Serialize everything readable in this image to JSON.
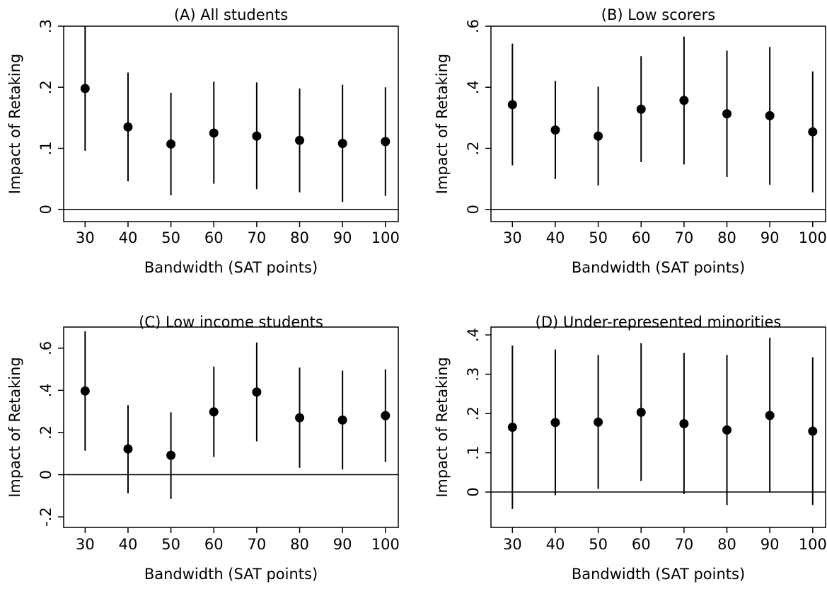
{
  "chart_data": [
    {
      "type": "scatter",
      "title": "(A) All students",
      "xlabel": "Bandwidth (SAT points)",
      "ylabel": "Impact of Retaking",
      "x": [
        30,
        40,
        50,
        60,
        70,
        80,
        90,
        100
      ],
      "xticks": [
        "30",
        "40",
        "50",
        "60",
        "70",
        "80",
        "90",
        "100"
      ],
      "yticks": [
        {
          "value": 0,
          "label": "0"
        },
        {
          "value": 0.1,
          "label": ".1"
        },
        {
          "value": 0.2,
          "label": ".2"
        },
        {
          "value": 0.3,
          "label": ".3"
        }
      ],
      "ylim": [
        -0.02,
        0.3
      ],
      "reference_line": 0,
      "estimates": [
        0.198,
        0.135,
        0.107,
        0.125,
        0.12,
        0.113,
        0.108,
        0.111
      ],
      "ci_low": [
        0.096,
        0.046,
        0.023,
        0.042,
        0.033,
        0.028,
        0.012,
        0.022
      ],
      "ci_high": [
        0.3,
        0.224,
        0.191,
        0.209,
        0.208,
        0.198,
        0.204,
        0.2
      ]
    },
    {
      "type": "scatter",
      "title": "(B) Low scorers",
      "xlabel": "Bandwidth (SAT points)",
      "ylabel": "Impact of Retaking",
      "x": [
        30,
        40,
        50,
        60,
        70,
        80,
        90,
        100
      ],
      "xticks": [
        "30",
        "40",
        "50",
        "60",
        "70",
        "80",
        "90",
        "100"
      ],
      "yticks": [
        {
          "value": 0,
          "label": "0"
        },
        {
          "value": 0.2,
          "label": ".2"
        },
        {
          "value": 0.4,
          "label": ".4"
        },
        {
          "value": 0.6,
          "label": ".6"
        }
      ],
      "ylim": [
        -0.04,
        0.6
      ],
      "reference_line": 0,
      "estimates": [
        0.343,
        0.26,
        0.24,
        0.328,
        0.357,
        0.313,
        0.307,
        0.254
      ],
      "ci_low": [
        0.144,
        0.099,
        0.078,
        0.155,
        0.147,
        0.106,
        0.081,
        0.056
      ],
      "ci_high": [
        0.543,
        0.421,
        0.402,
        0.502,
        0.566,
        0.52,
        0.532,
        0.452
      ]
    },
    {
      "type": "scatter",
      "title": "(C) Low income students",
      "xlabel": "Bandwidth (SAT points)",
      "ylabel": "Impact of Retaking",
      "x": [
        30,
        40,
        50,
        60,
        70,
        80,
        90,
        100
      ],
      "xticks": [
        "30",
        "40",
        "50",
        "60",
        "70",
        "80",
        "90",
        "100"
      ],
      "yticks": [
        {
          "value": -0.2,
          "label": "-.2"
        },
        {
          "value": 0,
          "label": "0"
        },
        {
          "value": 0.2,
          "label": ".2"
        },
        {
          "value": 0.4,
          "label": ".4"
        },
        {
          "value": 0.6,
          "label": ".6"
        }
      ],
      "ylim": [
        -0.25,
        0.7
      ],
      "reference_line": 0,
      "estimates": [
        0.397,
        0.122,
        0.092,
        0.298,
        0.392,
        0.27,
        0.259,
        0.28
      ],
      "ci_low": [
        0.114,
        -0.088,
        -0.115,
        0.084,
        0.158,
        0.033,
        0.025,
        0.06
      ],
      "ci_high": [
        0.68,
        0.33,
        0.296,
        0.513,
        0.627,
        0.508,
        0.493,
        0.5
      ]
    },
    {
      "type": "scatter",
      "title": "(D) Under-represented minorities",
      "xlabel": "Bandwidth (SAT points)",
      "ylabel": "Impact of Retaking",
      "x": [
        30,
        40,
        50,
        60,
        70,
        80,
        90,
        100
      ],
      "xticks": [
        "30",
        "40",
        "50",
        "60",
        "70",
        "80",
        "90",
        "100"
      ],
      "yticks": [
        {
          "value": 0,
          "label": "0"
        },
        {
          "value": 0.1,
          "label": ".1"
        },
        {
          "value": 0.2,
          "label": ".2"
        },
        {
          "value": 0.3,
          "label": ".3"
        },
        {
          "value": 0.4,
          "label": ".4"
        }
      ],
      "ylim": [
        -0.09,
        0.42
      ],
      "reference_line": 0,
      "estimates": [
        0.165,
        0.177,
        0.178,
        0.203,
        0.174,
        0.158,
        0.195,
        0.155
      ],
      "ci_low": [
        -0.043,
        -0.008,
        0.008,
        0.028,
        -0.005,
        -0.033,
        0,
        -0.033
      ],
      "ci_high": [
        0.373,
        0.363,
        0.349,
        0.379,
        0.354,
        0.349,
        0.393,
        0.343
      ]
    }
  ],
  "colors": {
    "marker": "#000000",
    "ci_line": "#000000",
    "reference_line": "#000000",
    "frame": "#000000",
    "background": "#ffffff"
  }
}
